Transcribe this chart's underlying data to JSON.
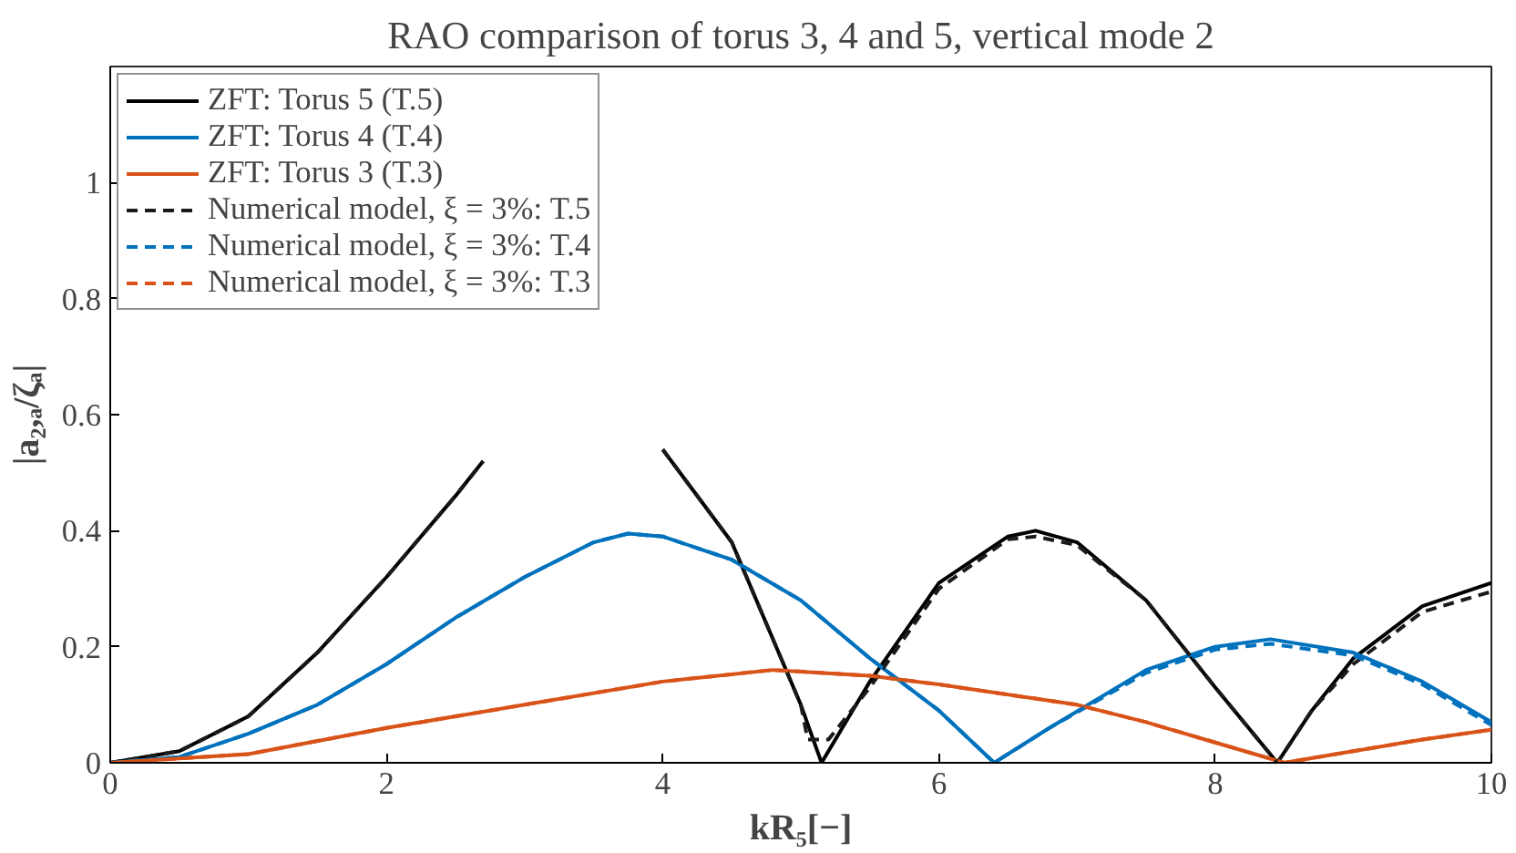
{
  "chart_data": {
    "type": "line",
    "title": "RAO comparison of torus 3, 4 and 5, vertical mode 2",
    "xlabel": "kR₅[−]",
    "ylabel": "|a₂,ₐ/ζₐ|",
    "xlim": [
      0,
      10
    ],
    "ylim": [
      0,
      1.2
    ],
    "xticks": [
      0,
      2,
      4,
      6,
      8,
      10
    ],
    "yticks": [
      0,
      0.2,
      0.4,
      0.6,
      0.8,
      1
    ],
    "grid": false,
    "legend": "top left",
    "marker": "none",
    "series": [
      {
        "name": "ZFT: Torus 5 (T.5)",
        "color": "#000000",
        "line_style": "solid",
        "x": [
          0,
          0.5,
          1,
          1.5,
          2,
          2.5,
          2.7,
          2.8,
          3.3,
          3.9,
          4,
          4.5,
          5,
          5.15,
          5.5,
          6,
          6.5,
          6.7,
          7,
          7.5,
          8,
          8.45,
          8.7,
          9,
          9.5,
          10
        ],
        "values": [
          0,
          0.02,
          0.08,
          0.19,
          0.32,
          0.46,
          0.52,
          null,
          null,
          null,
          0.54,
          0.38,
          0.1,
          0,
          0.14,
          0.31,
          0.39,
          0.4,
          0.38,
          0.28,
          0.13,
          0,
          0.09,
          0.18,
          0.27,
          0.31
        ]
      },
      {
        "name": "ZFT: Torus 4 (T.4)",
        "color": "#0072bd",
        "line_style": "solid",
        "x": [
          0,
          0.5,
          1,
          1.5,
          2,
          2.5,
          3,
          3.5,
          3.75,
          4,
          4.5,
          5,
          5.5,
          6,
          6.4,
          6.8,
          7.5,
          8,
          8.4,
          9,
          9.5,
          10
        ],
        "values": [
          0,
          0.01,
          0.05,
          0.1,
          0.17,
          0.25,
          0.32,
          0.38,
          0.395,
          0.39,
          0.35,
          0.28,
          0.18,
          0.09,
          0,
          0.06,
          0.16,
          0.2,
          0.213,
          0.19,
          0.14,
          0.07
        ]
      },
      {
        "name": "ZFT: Torus 3 (T.3)",
        "color": "#d95319",
        "line_style": "solid",
        "x": [
          0,
          1,
          2,
          3,
          4,
          4.8,
          5.5,
          6,
          7,
          7.5,
          8,
          8.5,
          9,
          9.5,
          10
        ],
        "values": [
          0,
          0.015,
          0.06,
          0.1,
          0.14,
          0.16,
          0.15,
          0.135,
          0.1,
          0.07,
          0.035,
          0,
          0.02,
          0.04,
          0.057
        ]
      },
      {
        "name": "Numerical model, ξ = 3%: T.5",
        "color": "#1a1a1a",
        "line_style": "dashed",
        "x": [
          0,
          0.5,
          1,
          1.5,
          2,
          2.5,
          2.7,
          2.8,
          3.3,
          3.9,
          4,
          4.5,
          5,
          5.05,
          5.2,
          5.5,
          6,
          6.5,
          6.7,
          7,
          7.5,
          8,
          8.45,
          8.7,
          9,
          9.5,
          10
        ],
        "values": [
          0,
          0.02,
          0.08,
          0.19,
          0.32,
          0.46,
          0.52,
          null,
          null,
          null,
          0.54,
          0.38,
          0.1,
          0.04,
          0.04,
          0.13,
          0.3,
          0.385,
          0.39,
          0.375,
          0.28,
          0.13,
          0,
          0.09,
          0.17,
          0.26,
          0.295
        ]
      },
      {
        "name": "Numerical model, ξ = 3%: T.4",
        "color": "#0072bd",
        "line_style": "dashed",
        "x": [
          0,
          0.5,
          1,
          1.5,
          2,
          2.5,
          3,
          3.5,
          3.75,
          4,
          4.5,
          5,
          5.5,
          6,
          6.4,
          6.8,
          7.5,
          8,
          8.4,
          9,
          9.5,
          10
        ],
        "values": [
          0,
          0.01,
          0.05,
          0.1,
          0.17,
          0.25,
          0.32,
          0.38,
          0.395,
          0.39,
          0.35,
          0.28,
          0.18,
          0.09,
          0,
          0.06,
          0.155,
          0.195,
          0.205,
          0.185,
          0.135,
          0.065
        ]
      },
      {
        "name": "Numerical model, ξ = 3%: T.3",
        "color": "#d95319",
        "line_style": "dashed",
        "x": [
          0,
          1,
          2,
          3,
          4,
          4.8,
          5.5,
          6,
          7,
          7.5,
          8,
          8.5,
          9,
          9.5,
          10
        ],
        "values": [
          0,
          0.015,
          0.06,
          0.1,
          0.14,
          0.16,
          0.15,
          0.135,
          0.1,
          0.07,
          0.035,
          0,
          0.02,
          0.04,
          0.057
        ]
      }
    ]
  }
}
